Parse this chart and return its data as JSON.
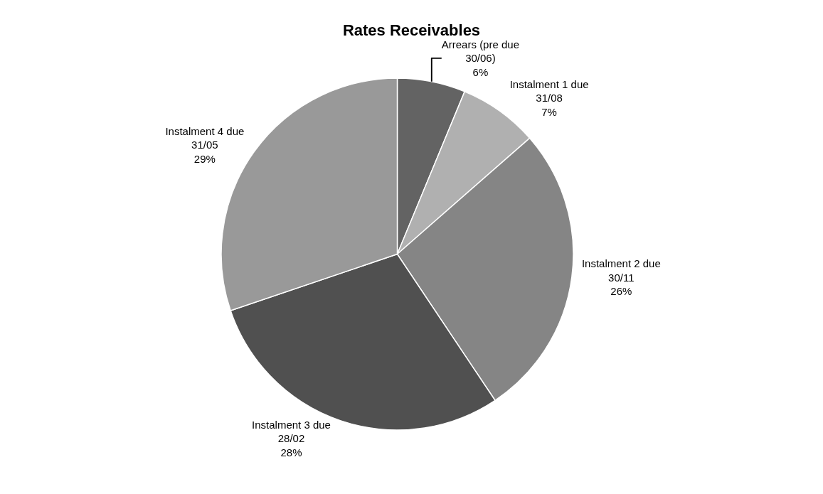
{
  "chart_data": {
    "type": "pie",
    "title": "Rates Receivables",
    "categories": [
      "Arrears (pre due 30/06)",
      "Instalment 1 due 31/08",
      "Instalment 2 due 30/11",
      "Instalment 3 due 28/02",
      "Instalment 4 due 31/05"
    ],
    "values": [
      6,
      7,
      26,
      28,
      29
    ],
    "value_labels": [
      "6%",
      "7%",
      "26%",
      "28%",
      "29%"
    ],
    "colors": [
      "#636363",
      "#b0b0b0",
      "#858585",
      "#505050",
      "#999999"
    ],
    "legend": false
  }
}
